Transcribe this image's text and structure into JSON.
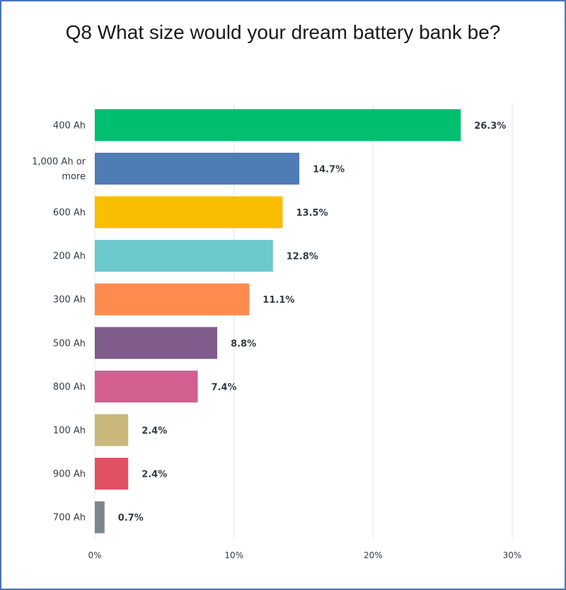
{
  "chart_data": {
    "type": "bar",
    "orientation": "horizontal",
    "title": "Q8 What size would your dream battery bank be?",
    "categories": [
      [
        "400 Ah"
      ],
      [
        "1,000 Ah or",
        "more"
      ],
      [
        "600 Ah"
      ],
      [
        "200 Ah"
      ],
      [
        "300 Ah"
      ],
      [
        "500 Ah"
      ],
      [
        "800 Ah"
      ],
      [
        "100 Ah"
      ],
      [
        "900 Ah"
      ],
      [
        "700 Ah"
      ]
    ],
    "values": [
      26.3,
      14.7,
      13.5,
      12.8,
      11.1,
      8.8,
      7.4,
      2.4,
      2.4,
      0.7
    ],
    "value_labels": [
      "26.3%",
      "14.7%",
      "13.5%",
      "12.8%",
      "11.1%",
      "8.8%",
      "7.4%",
      "2.4%",
      "2.4%",
      "0.7%"
    ],
    "colors": [
      "#00bf6f",
      "#507cb6",
      "#f9be00",
      "#6bc8cd",
      "#ff8b4f",
      "#7f5c8c",
      "#d25f90",
      "#c9b77c",
      "#e05263",
      "#7d868c"
    ],
    "xlim": [
      0,
      30
    ],
    "xticks": [
      "0%",
      "10%",
      "20%",
      "30%"
    ],
    "grid": true
  }
}
